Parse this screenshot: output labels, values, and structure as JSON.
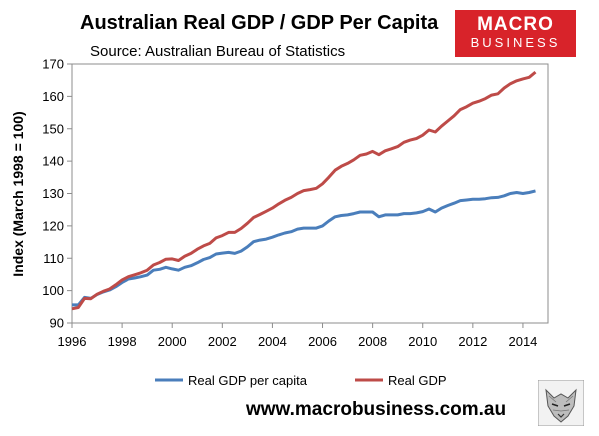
{
  "header": {
    "title": "Australian Real GDP / GDP Per Capita",
    "source": "Source: Australian Bureau of Statistics"
  },
  "logo": {
    "line1": "MACRO",
    "line2": "BUSINESS"
  },
  "footer": {
    "website": "www.macrobusiness.com.au"
  },
  "colors": {
    "per_capita": "#4a7ebb",
    "real_gdp": "#be4b48",
    "logo_bg": "#d8232a"
  },
  "chart_data": {
    "type": "line",
    "title": "Australian Real GDP / GDP Per Capita",
    "ylabel": "Index (March 1998 = 100)",
    "xlabel": "",
    "xlim": [
      1996,
      2015
    ],
    "ylim": [
      90,
      170
    ],
    "xticks": [
      "1996",
      "1998",
      "2000",
      "2002",
      "2004",
      "2006",
      "2008",
      "2010",
      "2012",
      "2014"
    ],
    "yticks": [
      "90",
      "100",
      "110",
      "120",
      "130",
      "140",
      "150",
      "160",
      "170"
    ],
    "grid": false,
    "legend": "bottom",
    "series": [
      {
        "name": "Real GDP per capita",
        "color": "#4a7ebb",
        "points": [
          [
            1996.0,
            95.6
          ],
          [
            1996.25,
            95.6
          ],
          [
            1996.5,
            97.9
          ],
          [
            1996.75,
            97.6
          ],
          [
            1997.0,
            98.8
          ],
          [
            1997.25,
            99.6
          ],
          [
            1997.5,
            100.2
          ],
          [
            1997.75,
            101.2
          ],
          [
            1998.0,
            102.5
          ],
          [
            1998.25,
            103.6
          ],
          [
            1998.5,
            103.9
          ],
          [
            1998.75,
            104.3
          ],
          [
            1999.0,
            104.8
          ],
          [
            1999.25,
            106.3
          ],
          [
            1999.5,
            106.6
          ],
          [
            1999.75,
            107.2
          ],
          [
            2000.0,
            106.7
          ],
          [
            2000.25,
            106.3
          ],
          [
            2000.5,
            107.2
          ],
          [
            2000.75,
            107.7
          ],
          [
            2001.0,
            108.6
          ],
          [
            2001.25,
            109.6
          ],
          [
            2001.5,
            110.2
          ],
          [
            2001.75,
            111.3
          ],
          [
            2002.0,
            111.6
          ],
          [
            2002.25,
            111.8
          ],
          [
            2002.5,
            111.5
          ],
          [
            2002.75,
            112.2
          ],
          [
            2003.0,
            113.5
          ],
          [
            2003.25,
            115.1
          ],
          [
            2003.5,
            115.6
          ],
          [
            2003.75,
            115.9
          ],
          [
            2004.0,
            116.5
          ],
          [
            2004.25,
            117.2
          ],
          [
            2004.5,
            117.8
          ],
          [
            2004.75,
            118.2
          ],
          [
            2005.0,
            119.0
          ],
          [
            2005.25,
            119.3
          ],
          [
            2005.5,
            119.3
          ],
          [
            2005.75,
            119.3
          ],
          [
            2006.0,
            120.0
          ],
          [
            2006.25,
            121.5
          ],
          [
            2006.5,
            122.8
          ],
          [
            2006.75,
            123.2
          ],
          [
            2007.0,
            123.4
          ],
          [
            2007.25,
            123.8
          ],
          [
            2007.5,
            124.3
          ],
          [
            2007.75,
            124.3
          ],
          [
            2008.0,
            124.3
          ],
          [
            2008.25,
            122.8
          ],
          [
            2008.5,
            123.4
          ],
          [
            2008.75,
            123.4
          ],
          [
            2009.0,
            123.4
          ],
          [
            2009.25,
            123.8
          ],
          [
            2009.5,
            123.8
          ],
          [
            2009.75,
            124.0
          ],
          [
            2010.0,
            124.4
          ],
          [
            2010.25,
            125.2
          ],
          [
            2010.5,
            124.3
          ],
          [
            2010.75,
            125.5
          ],
          [
            2011.0,
            126.3
          ],
          [
            2011.25,
            127.0
          ],
          [
            2011.5,
            127.8
          ],
          [
            2011.75,
            128.0
          ],
          [
            2012.0,
            128.2
          ],
          [
            2012.25,
            128.2
          ],
          [
            2012.5,
            128.4
          ],
          [
            2012.75,
            128.7
          ],
          [
            2013.0,
            128.8
          ],
          [
            2013.25,
            129.3
          ],
          [
            2013.5,
            130.0
          ],
          [
            2013.75,
            130.3
          ],
          [
            2014.0,
            130.0
          ],
          [
            2014.25,
            130.3
          ],
          [
            2014.5,
            130.8
          ]
        ]
      },
      {
        "name": "Real GDP",
        "color": "#be4b48",
        "points": [
          [
            1996.0,
            94.4
          ],
          [
            1996.25,
            94.8
          ],
          [
            1996.5,
            97.6
          ],
          [
            1996.75,
            97.5
          ],
          [
            1997.0,
            98.9
          ],
          [
            1997.25,
            99.8
          ],
          [
            1997.5,
            100.5
          ],
          [
            1997.75,
            101.8
          ],
          [
            1998.0,
            103.3
          ],
          [
            1998.25,
            104.3
          ],
          [
            1998.5,
            104.9
          ],
          [
            1998.75,
            105.5
          ],
          [
            1999.0,
            106.3
          ],
          [
            1999.25,
            107.9
          ],
          [
            1999.5,
            108.7
          ],
          [
            1999.75,
            109.7
          ],
          [
            2000.0,
            109.8
          ],
          [
            2000.25,
            109.3
          ],
          [
            2000.5,
            110.6
          ],
          [
            2000.75,
            111.5
          ],
          [
            2001.0,
            112.8
          ],
          [
            2001.25,
            113.8
          ],
          [
            2001.5,
            114.6
          ],
          [
            2001.75,
            116.3
          ],
          [
            2002.0,
            117.0
          ],
          [
            2002.25,
            118.0
          ],
          [
            2002.5,
            118.0
          ],
          [
            2002.75,
            119.2
          ],
          [
            2003.0,
            120.8
          ],
          [
            2003.25,
            122.6
          ],
          [
            2003.5,
            123.5
          ],
          [
            2003.75,
            124.5
          ],
          [
            2004.0,
            125.5
          ],
          [
            2004.25,
            126.8
          ],
          [
            2004.5,
            127.9
          ],
          [
            2004.75,
            128.8
          ],
          [
            2005.0,
            130.0
          ],
          [
            2005.25,
            130.9
          ],
          [
            2005.5,
            131.2
          ],
          [
            2005.75,
            131.6
          ],
          [
            2006.0,
            133.0
          ],
          [
            2006.25,
            135.0
          ],
          [
            2006.5,
            137.2
          ],
          [
            2006.75,
            138.4
          ],
          [
            2007.0,
            139.3
          ],
          [
            2007.25,
            140.4
          ],
          [
            2007.5,
            141.8
          ],
          [
            2007.75,
            142.2
          ],
          [
            2008.0,
            143.0
          ],
          [
            2008.25,
            142.0
          ],
          [
            2008.5,
            143.2
          ],
          [
            2008.75,
            143.8
          ],
          [
            2009.0,
            144.5
          ],
          [
            2009.25,
            145.8
          ],
          [
            2009.5,
            146.5
          ],
          [
            2009.75,
            147.0
          ],
          [
            2010.0,
            148.0
          ],
          [
            2010.25,
            149.6
          ],
          [
            2010.5,
            149.0
          ],
          [
            2010.75,
            150.8
          ],
          [
            2011.0,
            152.4
          ],
          [
            2011.25,
            154.0
          ],
          [
            2011.5,
            155.9
          ],
          [
            2011.75,
            156.8
          ],
          [
            2012.0,
            157.9
          ],
          [
            2012.25,
            158.5
          ],
          [
            2012.5,
            159.3
          ],
          [
            2012.75,
            160.4
          ],
          [
            2013.0,
            160.8
          ],
          [
            2013.25,
            162.6
          ],
          [
            2013.5,
            163.9
          ],
          [
            2013.75,
            164.8
          ],
          [
            2014.0,
            165.4
          ],
          [
            2014.25,
            165.9
          ],
          [
            2014.5,
            167.5
          ]
        ]
      }
    ]
  }
}
